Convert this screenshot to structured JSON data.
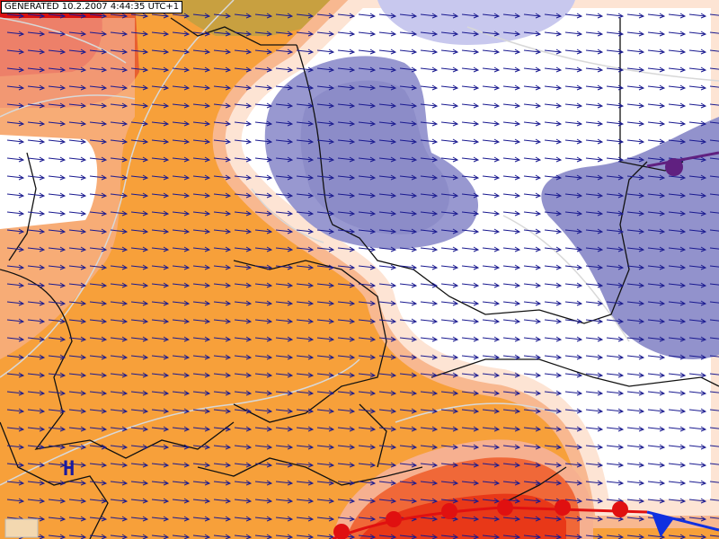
{
  "header": {
    "generated": "GENERATED 10.2.2007 4:44:35 UTC+1"
  },
  "labels": {
    "high": "H"
  }
}
